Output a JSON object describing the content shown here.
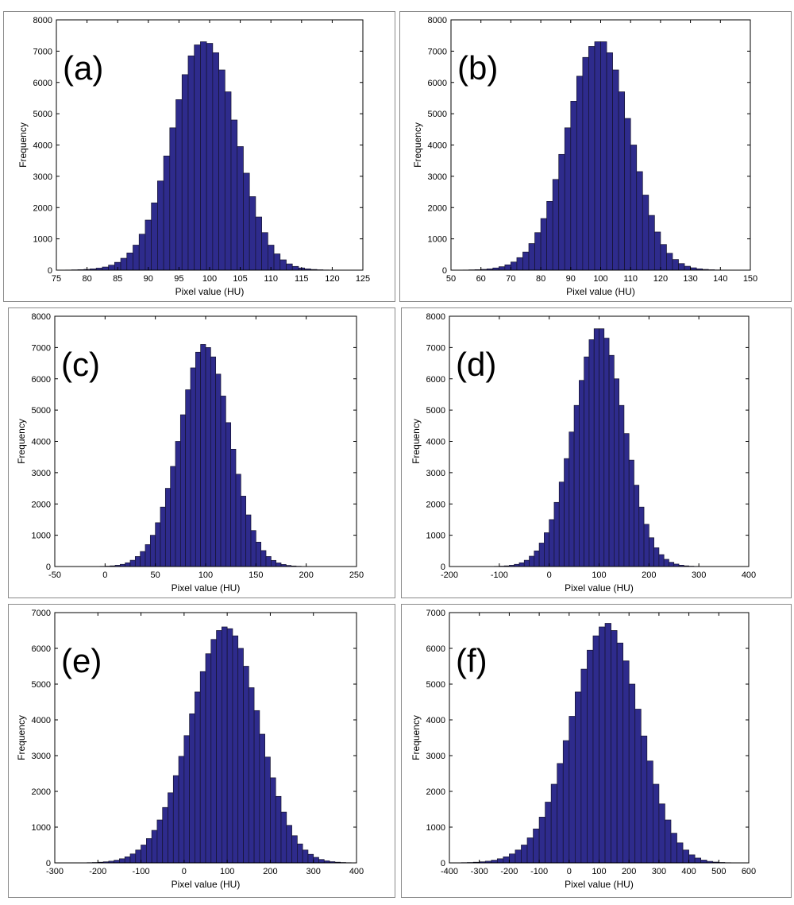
{
  "chart_data": [
    {
      "type": "bar",
      "panel_label": "(a)",
      "xlabel": "Pixel value (HU)",
      "ylabel": "Frequency",
      "xlim": [
        75,
        125
      ],
      "ylim": [
        0,
        8000
      ],
      "xticks": [
        "75",
        "80",
        "85",
        "90",
        "95",
        "100",
        "105",
        "110",
        "115",
        "120",
        "125"
      ],
      "yticks": [
        "0",
        "1000",
        "2000",
        "3000",
        "4000",
        "5000",
        "6000",
        "7000",
        "8000"
      ],
      "bin_width": 1,
      "x": [
        77,
        78,
        79,
        80,
        81,
        82,
        83,
        84,
        85,
        86,
        87,
        88,
        89,
        90,
        91,
        92,
        93,
        94,
        95,
        96,
        97,
        98,
        99,
        100,
        101,
        102,
        103,
        104,
        105,
        106,
        107,
        108,
        109,
        110,
        111,
        112,
        113,
        114,
        115,
        116,
        117,
        118,
        119,
        120,
        121,
        122
      ],
      "values": [
        5,
        10,
        15,
        25,
        40,
        65,
        100,
        160,
        250,
        380,
        550,
        800,
        1150,
        1600,
        2150,
        2850,
        3650,
        4550,
        5450,
        6250,
        6850,
        7200,
        7300,
        7250,
        6950,
        6400,
        5700,
        4800,
        3950,
        3100,
        2350,
        1700,
        1200,
        800,
        520,
        330,
        200,
        120,
        70,
        40,
        22,
        12,
        6,
        3,
        2,
        1
      ]
    },
    {
      "type": "bar",
      "panel_label": "(b)",
      "xlabel": "Pixel value (HU)",
      "ylabel": "Frequency",
      "xlim": [
        50,
        150
      ],
      "ylim": [
        0,
        8000
      ],
      "xticks": [
        "50",
        "60",
        "70",
        "80",
        "90",
        "100",
        "110",
        "120",
        "130",
        "140",
        "150"
      ],
      "yticks": [
        "0",
        "1000",
        "2000",
        "3000",
        "4000",
        "5000",
        "6000",
        "7000",
        "8000"
      ],
      "bin_width": 2,
      "x": [
        55,
        57,
        59,
        61,
        63,
        65,
        67,
        69,
        71,
        73,
        75,
        77,
        79,
        81,
        83,
        85,
        87,
        89,
        91,
        93,
        95,
        97,
        99,
        101,
        103,
        105,
        107,
        109,
        111,
        113,
        115,
        117,
        119,
        121,
        123,
        125,
        127,
        129,
        131,
        133,
        135,
        137,
        139,
        141,
        143
      ],
      "values": [
        5,
        10,
        15,
        25,
        40,
        70,
        110,
        170,
        260,
        400,
        580,
        850,
        1200,
        1650,
        2200,
        2900,
        3700,
        4550,
        5400,
        6200,
        6800,
        7150,
        7300,
        7300,
        6950,
        6400,
        5700,
        4850,
        4000,
        3150,
        2400,
        1750,
        1220,
        820,
        540,
        340,
        210,
        125,
        75,
        42,
        24,
        13,
        7,
        4,
        2
      ]
    },
    {
      "type": "bar",
      "panel_label": "(c)",
      "xlabel": "Pixel value (HU)",
      "ylabel": "Frequency",
      "xlim": [
        -50,
        250
      ],
      "ylim": [
        0,
        8000
      ],
      "xticks": [
        "-50",
        "0",
        "50",
        "100",
        "150",
        "200",
        "250"
      ],
      "yticks": [
        "0",
        "1000",
        "2000",
        "3000",
        "4000",
        "5000",
        "6000",
        "7000",
        "8000"
      ],
      "bin_width": 5,
      "x": [
        -7.5,
        -2.5,
        2.5,
        7.5,
        12.5,
        17.5,
        22.5,
        27.5,
        32.5,
        37.5,
        42.5,
        47.5,
        52.5,
        57.5,
        62.5,
        67.5,
        72.5,
        77.5,
        82.5,
        87.5,
        92.5,
        97.5,
        102.5,
        107.5,
        112.5,
        117.5,
        122.5,
        127.5,
        132.5,
        137.5,
        142.5,
        147.5,
        152.5,
        157.5,
        162.5,
        167.5,
        172.5,
        177.5,
        182.5,
        187.5,
        192.5,
        197.5,
        202.5,
        207.5
      ],
      "values": [
        3,
        6,
        12,
        22,
        40,
        70,
        120,
        200,
        320,
        480,
        700,
        1000,
        1400,
        1900,
        2500,
        3200,
        4000,
        4850,
        5650,
        6350,
        6850,
        7100,
        7000,
        6700,
        6150,
        5450,
        4600,
        3750,
        2950,
        2250,
        1650,
        1150,
        780,
        510,
        320,
        195,
        115,
        65,
        35,
        18,
        9,
        4,
        2,
        1
      ]
    },
    {
      "type": "bar",
      "panel_label": "(d)",
      "xlabel": "Pixel value (HU)",
      "ylabel": "Frequency",
      "xlim": [
        -200,
        400
      ],
      "ylim": [
        0,
        8000
      ],
      "xticks": [
        "-200",
        "-100",
        "0",
        "100",
        "200",
        "300",
        "400"
      ],
      "yticks": [
        "0",
        "1000",
        "2000",
        "3000",
        "4000",
        "5000",
        "6000",
        "7000",
        "8000"
      ],
      "bin_width": 10,
      "x": [
        -115,
        -105,
        -95,
        -85,
        -75,
        -65,
        -55,
        -45,
        -35,
        -25,
        -15,
        -5,
        5,
        15,
        25,
        35,
        45,
        55,
        65,
        75,
        85,
        95,
        105,
        115,
        125,
        135,
        145,
        155,
        165,
        175,
        185,
        195,
        205,
        215,
        225,
        235,
        245,
        255,
        265,
        275,
        285,
        295,
        305,
        315
      ],
      "values": [
        3,
        6,
        12,
        22,
        40,
        70,
        120,
        200,
        330,
        500,
        750,
        1080,
        1500,
        2050,
        2700,
        3450,
        4300,
        5150,
        5950,
        6700,
        7250,
        7600,
        7600,
        7300,
        6750,
        6000,
        5150,
        4250,
        3400,
        2600,
        1900,
        1350,
        920,
        600,
        380,
        230,
        135,
        78,
        42,
        22,
        11,
        5,
        2,
        1
      ]
    },
    {
      "type": "bar",
      "panel_label": "(e)",
      "xlabel": "Pixel value (HU)",
      "ylabel": "Frequency",
      "xlim": [
        -300,
        400
      ],
      "ylim": [
        0,
        7000
      ],
      "xticks": [
        "-300",
        "-200",
        "-100",
        "0",
        "100",
        "200",
        "300",
        "400"
      ],
      "yticks": [
        "0",
        "1000",
        "2000",
        "3000",
        "4000",
        "5000",
        "6000",
        "7000"
      ],
      "bin_width": 12.5,
      "x": [
        -231.25,
        -218.75,
        -206.25,
        -193.75,
        -181.25,
        -168.75,
        -156.25,
        -143.75,
        -131.25,
        -118.75,
        -106.25,
        -93.75,
        -81.25,
        -68.75,
        -56.25,
        -43.75,
        -31.25,
        -18.75,
        -6.25,
        6.25,
        18.75,
        31.25,
        43.75,
        56.25,
        68.75,
        81.25,
        93.75,
        106.25,
        118.75,
        131.25,
        143.75,
        156.25,
        168.75,
        181.25,
        193.75,
        206.25,
        218.75,
        231.25,
        243.75,
        256.25,
        268.75,
        281.25,
        293.75,
        306.25,
        318.75,
        331.25,
        343.75,
        356.25,
        368.75,
        381.25,
        393.75
      ],
      "values": [
        3,
        6,
        10,
        18,
        30,
        48,
        75,
        115,
        170,
        250,
        360,
        500,
        680,
        910,
        1200,
        1550,
        1960,
        2440,
        2980,
        3560,
        4170,
        4780,
        5350,
        5850,
        6250,
        6500,
        6600,
        6550,
        6350,
        6000,
        5500,
        4900,
        4260,
        3600,
        2960,
        2380,
        1860,
        1420,
        1050,
        760,
        530,
        360,
        240,
        155,
        95,
        58,
        34,
        19,
        10,
        5,
        2
      ]
    },
    {
      "type": "bar",
      "panel_label": "(f)",
      "xlabel": "Pixel value (HU)",
      "ylabel": "Frequency",
      "xlim": [
        -400,
        600
      ],
      "ylim": [
        0,
        7000
      ],
      "xticks": [
        "-400",
        "-300",
        "-200",
        "-100",
        "0",
        "100",
        "200",
        "300",
        "400",
        "500",
        "600"
      ],
      "yticks": [
        "0",
        "1000",
        "2000",
        "3000",
        "4000",
        "5000",
        "6000",
        "7000"
      ],
      "bin_width": 20,
      "x": [
        -370,
        -350,
        -330,
        -310,
        -290,
        -270,
        -250,
        -230,
        -210,
        -190,
        -170,
        -150,
        -130,
        -110,
        -90,
        -70,
        -50,
        -30,
        -10,
        10,
        30,
        50,
        70,
        90,
        110,
        130,
        150,
        170,
        190,
        210,
        230,
        250,
        270,
        290,
        310,
        330,
        350,
        370,
        390,
        410,
        430,
        450,
        470,
        490,
        510,
        530,
        550
      ],
      "values": [
        3,
        6,
        10,
        18,
        30,
        48,
        75,
        115,
        170,
        250,
        360,
        500,
        700,
        950,
        1280,
        1700,
        2200,
        2780,
        3420,
        4100,
        4780,
        5420,
        5950,
        6350,
        6600,
        6700,
        6500,
        6150,
        5650,
        5000,
        4300,
        3550,
        2850,
        2200,
        1650,
        1200,
        830,
        560,
        360,
        225,
        135,
        78,
        42,
        22,
        11,
        5,
        2
      ]
    }
  ]
}
